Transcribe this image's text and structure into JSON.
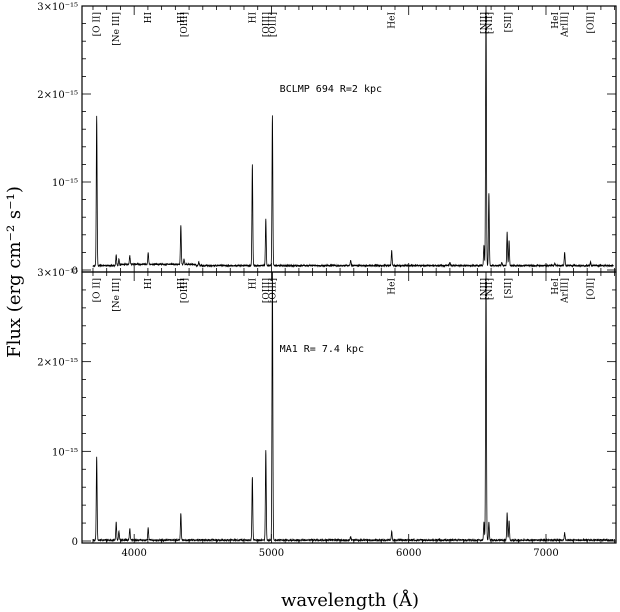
{
  "figure": {
    "ylabel": "Flux (erg cm⁻² s⁻¹)",
    "xlabel": "wavelength (Å)"
  },
  "chart_data": [
    {
      "type": "line",
      "panel": "top",
      "annotation": "BCLMP 694 R=2 kpc",
      "xlim": [
        3620,
        7510
      ],
      "ylim": [
        0,
        3e-15
      ],
      "xticks": [
        4000,
        5000,
        6000,
        7000
      ],
      "yticks": [
        {
          "v": 0,
          "label": "0"
        },
        {
          "v": 1e-15,
          "label": "10⁻¹⁵"
        },
        {
          "v": 2e-15,
          "label": "2×10⁻¹⁵"
        },
        {
          "v": 3e-15,
          "label": "3×10⁻¹⁵"
        }
      ],
      "continuum": 5e-17,
      "emission_lines": [
        {
          "x": 3727,
          "flux": 1.7e-15
        },
        {
          "x": 3869,
          "flux": 1.2e-16
        },
        {
          "x": 3889,
          "flux": 8e-17
        },
        {
          "x": 3968,
          "flux": 1e-16
        },
        {
          "x": 4102,
          "flux": 1.3e-16
        },
        {
          "x": 4340,
          "flux": 4.5e-16
        },
        {
          "x": 4363,
          "flux": 6e-17
        },
        {
          "x": 4471,
          "flux": 4e-17
        },
        {
          "x": 4861,
          "flux": 1.15e-15
        },
        {
          "x": 4959,
          "flux": 5.3e-16
        },
        {
          "x": 5007,
          "flux": 1.7e-15
        },
        {
          "x": 5577,
          "flux": 6e-17
        },
        {
          "x": 5876,
          "flux": 1.7e-16
        },
        {
          "x": 6300,
          "flux": 4e-17
        },
        {
          "x": 6548,
          "flux": 2.3e-16
        },
        {
          "x": 6563,
          "flux": 3e-15
        },
        {
          "x": 6584,
          "flux": 8.3e-16
        },
        {
          "x": 6678,
          "flux": 4e-17
        },
        {
          "x": 6717,
          "flux": 3.8e-16
        },
        {
          "x": 6731,
          "flux": 2.8e-16
        },
        {
          "x": 7065,
          "flux": 3e-17
        },
        {
          "x": 7136,
          "flux": 1.5e-16
        },
        {
          "x": 7325,
          "flux": 4e-17
        }
      ],
      "line_labels": [
        {
          "x": 3727,
          "text": "[O II]"
        },
        {
          "x": 3869,
          "text": "[Ne III]"
        },
        {
          "x": 4102,
          "text": "HI"
        },
        {
          "x": 4340,
          "text": "HI"
        },
        {
          "x": 4363,
          "text": "[OIII]"
        },
        {
          "x": 4861,
          "text": "HI"
        },
        {
          "x": 4959,
          "text": "[OIII]"
        },
        {
          "x": 5007,
          "text": "[OIII]"
        },
        {
          "x": 5876,
          "text": "HeI"
        },
        {
          "x": 6548,
          "text": "[NII]"
        },
        {
          "x": 6584,
          "text": "[NII]"
        },
        {
          "x": 6725,
          "text": "[SII]"
        },
        {
          "x": 7065,
          "text": "HeI"
        },
        {
          "x": 7136,
          "text": "ArIII]"
        },
        {
          "x": 7325,
          "text": "[OII]"
        }
      ]
    },
    {
      "type": "line",
      "panel": "bottom",
      "annotation": "MA1 R= 7.4 kpc",
      "xlim": [
        3620,
        7510
      ],
      "ylim": [
        0,
        3e-15
      ],
      "xticks": [
        4000,
        5000,
        6000,
        7000
      ],
      "xticklabels": [
        "4000",
        "5000",
        "6000",
        "7000"
      ],
      "yticks": [
        {
          "v": 0,
          "label": "0"
        },
        {
          "v": 1e-15,
          "label": "10⁻¹⁵"
        },
        {
          "v": 2e-15,
          "label": "2×10⁻¹⁵"
        },
        {
          "v": 3e-15,
          "label": "3×10⁻¹⁵"
        }
      ],
      "continuum": 1e-17,
      "emission_lines": [
        {
          "x": 3727,
          "flux": 9.3e-16
        },
        {
          "x": 3869,
          "flux": 2e-16
        },
        {
          "x": 3889,
          "flux": 1e-16
        },
        {
          "x": 3968,
          "flux": 1.3e-16
        },
        {
          "x": 4102,
          "flux": 1.4e-16
        },
        {
          "x": 4340,
          "flux": 3e-16
        },
        {
          "x": 4861,
          "flux": 7.1e-16
        },
        {
          "x": 4959,
          "flux": 1e-15
        },
        {
          "x": 5007,
          "flux": 3e-15
        },
        {
          "x": 5577,
          "flux": 4e-17
        },
        {
          "x": 5876,
          "flux": 1e-16
        },
        {
          "x": 6548,
          "flux": 2e-16
        },
        {
          "x": 6563,
          "flux": 3e-15
        },
        {
          "x": 6584,
          "flux": 2e-16
        },
        {
          "x": 6717,
          "flux": 3e-16
        },
        {
          "x": 6731,
          "flux": 2.2e-16
        },
        {
          "x": 7136,
          "flux": 8e-17
        }
      ],
      "line_labels": [
        {
          "x": 3727,
          "text": "[O II]"
        },
        {
          "x": 3869,
          "text": "[Ne III]"
        },
        {
          "x": 4102,
          "text": "HI"
        },
        {
          "x": 4340,
          "text": "HI"
        },
        {
          "x": 4363,
          "text": "[OIII]"
        },
        {
          "x": 4861,
          "text": "HI"
        },
        {
          "x": 4959,
          "text": "[OIII]"
        },
        {
          "x": 5007,
          "text": "[OIII]"
        },
        {
          "x": 5876,
          "text": "HeI"
        },
        {
          "x": 6548,
          "text": "[NII]"
        },
        {
          "x": 6584,
          "text": "[NII]"
        },
        {
          "x": 6725,
          "text": "[SII]"
        },
        {
          "x": 7065,
          "text": "HeI"
        },
        {
          "x": 7136,
          "text": "ArIII]"
        },
        {
          "x": 7325,
          "text": "[OII]"
        }
      ]
    }
  ]
}
